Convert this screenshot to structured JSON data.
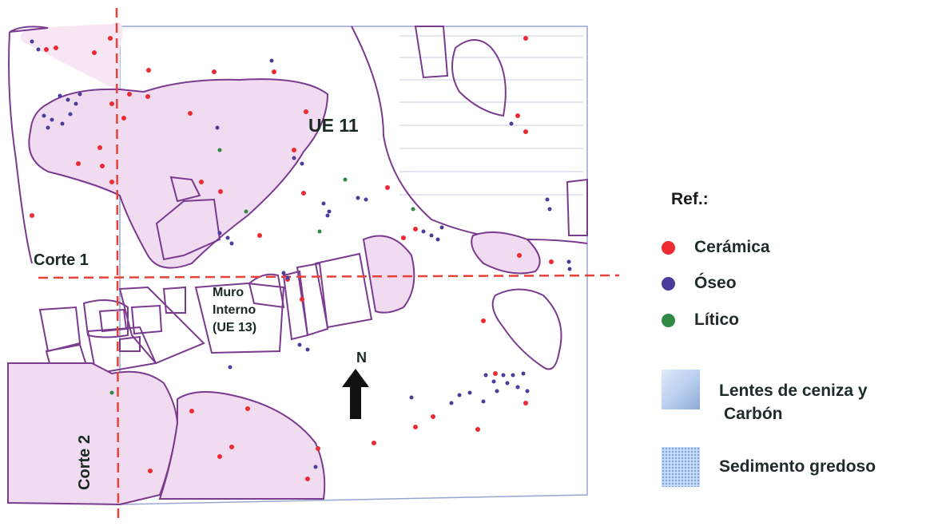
{
  "labels": {
    "ue11": "UE 11",
    "corte1": "Corte 1",
    "corte2": "Corte 2",
    "muro_line1": "Muro",
    "muro_line2": "Interno",
    "muro_line3": "(UE 13)",
    "north": "N"
  },
  "legend": {
    "title": "Ref.:",
    "items": [
      {
        "label": "Cerámica",
        "color": "#ee2b33"
      },
      {
        "label": "Óseo",
        "color": "#4b3c9c"
      },
      {
        "label": "Lítico",
        "color": "#2f8a45"
      }
    ],
    "ash_line1": "Lentes de ceniza y",
    "ash_line2": "Carbón",
    "sediment": "Sedimento gredoso"
  },
  "colors": {
    "outline": "#7a3a8f",
    "fill": "#f1dbf0",
    "section_line": "#e8433a",
    "grid_line": "#9aa4d0"
  }
}
